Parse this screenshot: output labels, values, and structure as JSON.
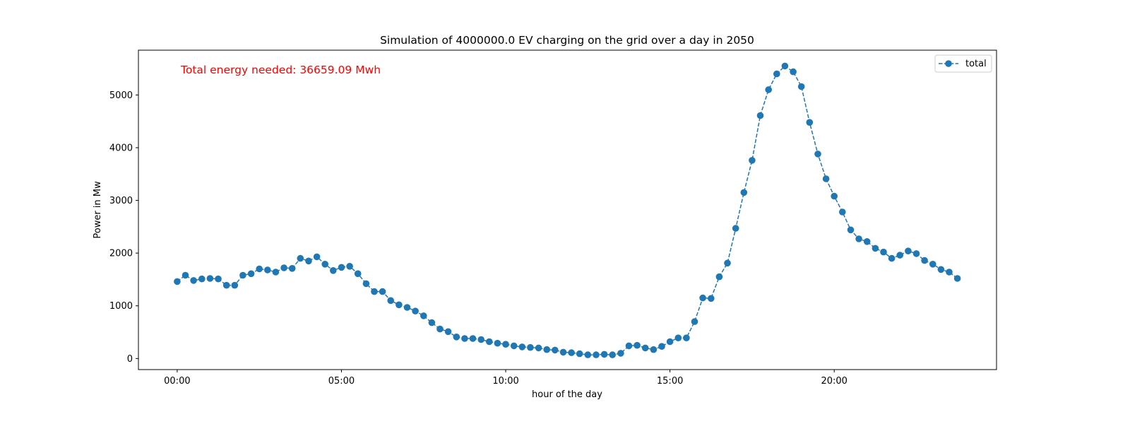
{
  "chart_data": {
    "type": "line",
    "title": "Simulation of 4000000.0 EV charging on the grid over a day in 2050",
    "xlabel": "hour of the day",
    "ylabel": "Power in Mw",
    "x_unit": "hour of day",
    "xlim": [
      -1.18,
      24.94
    ],
    "ylim": [
      -210,
      5850
    ],
    "x_ticks": [
      0,
      5,
      10,
      15,
      20
    ],
    "x_tick_labels": [
      "00:00",
      "05:00",
      "10:00",
      "15:00",
      "20:00"
    ],
    "y_ticks": [
      0,
      1000,
      2000,
      3000,
      4000,
      5000
    ],
    "y_tick_labels": [
      "0",
      "1000",
      "2000",
      "3000",
      "4000",
      "5000"
    ],
    "grid": false,
    "legend_position": "upper right",
    "annotation": {
      "text": "Total energy needed: 36659.09 Mwh",
      "color": "#ff0000"
    },
    "series": [
      {
        "name": "total",
        "color": "#1f77b4",
        "line_style": "dashed",
        "marker": "circle",
        "x": [
          0,
          0.25,
          0.5,
          0.75,
          1,
          1.25,
          1.5,
          1.75,
          2,
          2.25,
          2.5,
          2.75,
          3,
          3.25,
          3.5,
          3.75,
          4,
          4.25,
          4.5,
          4.75,
          5,
          5.25,
          5.5,
          5.75,
          6,
          6.25,
          6.5,
          6.75,
          7,
          7.25,
          7.5,
          7.75,
          8,
          8.25,
          8.5,
          8.75,
          9,
          9.25,
          9.5,
          9.75,
          10,
          10.25,
          10.5,
          10.75,
          11,
          11.25,
          11.5,
          11.75,
          12,
          12.25,
          12.5,
          12.75,
          13,
          13.25,
          13.5,
          13.75,
          14,
          14.25,
          14.5,
          14.75,
          15,
          15.25,
          15.5,
          15.75,
          16,
          16.25,
          16.5,
          16.75,
          17,
          17.25,
          17.5,
          17.75,
          18,
          18.25,
          18.5,
          18.75,
          19,
          19.25,
          19.5,
          19.75,
          20,
          20.25,
          20.5,
          20.75,
          21,
          21.25,
          21.5,
          21.75,
          22,
          22.25,
          22.5,
          22.75,
          23,
          23.25,
          23.5,
          23.75
        ],
        "values": [
          1460,
          1580,
          1480,
          1510,
          1520,
          1510,
          1390,
          1390,
          1580,
          1610,
          1700,
          1680,
          1640,
          1720,
          1710,
          1900,
          1850,
          1930,
          1790,
          1670,
          1730,
          1750,
          1610,
          1420,
          1270,
          1270,
          1100,
          1020,
          970,
          900,
          810,
          680,
          560,
          510,
          410,
          380,
          380,
          360,
          320,
          290,
          270,
          240,
          220,
          210,
          200,
          170,
          160,
          120,
          110,
          90,
          70,
          70,
          80,
          70,
          100,
          240,
          250,
          200,
          170,
          230,
          320,
          390,
          390,
          700,
          1150,
          1140,
          1550,
          1810,
          2470,
          3150,
          3760,
          4610,
          5100,
          5400,
          5550,
          5440,
          5160,
          4480,
          3880,
          3410,
          3080,
          2780,
          2440,
          2270,
          2220,
          2090,
          2020,
          1900,
          1960,
          2040,
          1990,
          1860,
          1790,
          1690,
          1640,
          1520
        ]
      }
    ]
  }
}
